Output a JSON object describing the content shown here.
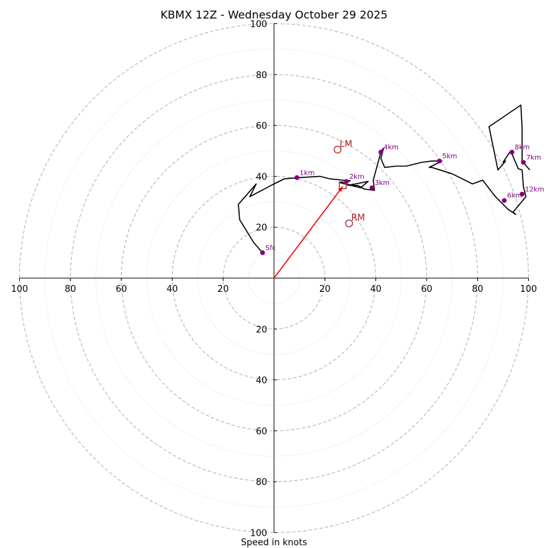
{
  "chart_data": {
    "type": "hodograph",
    "title": "KBMX 12Z - Wednesday October 29 2025",
    "xlabel": "Speed in knots",
    "units": "knots",
    "xlim": [
      -100,
      100
    ],
    "ylim": [
      -100,
      100
    ],
    "ring_major": [
      20,
      40,
      60,
      80,
      100
    ],
    "ring_minor": [
      10,
      30,
      50,
      70,
      90
    ],
    "x_tick_values": [
      -100,
      -80,
      -60,
      -40,
      -20,
      20,
      40,
      60,
      80,
      100
    ],
    "x_tick_labels": [
      "100",
      "80",
      "60",
      "40",
      "20",
      "20",
      "40",
      "60",
      "80",
      "100"
    ],
    "y_tick_values": [
      100,
      80,
      60,
      40,
      20,
      -20,
      -40,
      -60,
      -80,
      -100
    ],
    "y_tick_labels": [
      "100",
      "80",
      "60",
      "40",
      "20",
      "20",
      "40",
      "60",
      "80",
      "100"
    ],
    "hodograph_trace": [
      [
        -4.5,
        10
      ],
      [
        -8,
        14
      ],
      [
        -13.5,
        23
      ],
      [
        -14,
        29
      ],
      [
        -7,
        37
      ],
      [
        -9.5,
        32
      ],
      [
        -1,
        36.5
      ],
      [
        4,
        39
      ],
      [
        10,
        39.5
      ],
      [
        18,
        40
      ],
      [
        22,
        39
      ],
      [
        27,
        38.5
      ],
      [
        30,
        38.2
      ],
      [
        26,
        37.5
      ],
      [
        30,
        36.5
      ],
      [
        34,
        35.5
      ],
      [
        37,
        38
      ],
      [
        32,
        37
      ],
      [
        29,
        36.5
      ],
      [
        33,
        36.4
      ],
      [
        35.5,
        35
      ],
      [
        39.5,
        34.5
      ],
      [
        39,
        38.5
      ],
      [
        42,
        49.5
      ],
      [
        43,
        51
      ],
      [
        42,
        47
      ],
      [
        43.5,
        43.5
      ],
      [
        48,
        44
      ],
      [
        52,
        44
      ],
      [
        58,
        45.5
      ],
      [
        62,
        46
      ],
      [
        66,
        46
      ],
      [
        61,
        43.5
      ],
      [
        62,
        43.5
      ],
      [
        70,
        41
      ],
      [
        78,
        37
      ],
      [
        82,
        38.5
      ],
      [
        87,
        32
      ],
      [
        92,
        27
      ],
      [
        95,
        25
      ],
      [
        94,
        26
      ],
      [
        99,
        32
      ],
      [
        98,
        36
      ],
      [
        97.5,
        42.5
      ],
      [
        96,
        43
      ],
      [
        93,
        50
      ],
      [
        90,
        45.5
      ],
      [
        91,
        46
      ],
      [
        88,
        42.5
      ],
      [
        84.5,
        59.5
      ],
      [
        97,
        68
      ],
      [
        97.5,
        59
      ],
      [
        97.5,
        46
      ],
      [
        100.5,
        42.5
      ]
    ],
    "height_markers": [
      {
        "label": "Sfc",
        "u": -4.5,
        "v": 10
      },
      {
        "label": "1km",
        "u": 9,
        "v": 39.5
      },
      {
        "label": "2km",
        "u": 28.5,
        "v": 38
      },
      {
        "label": "3km",
        "u": 38.5,
        "v": 35.5
      },
      {
        "label": "4km",
        "u": 42,
        "v": 49.5
      },
      {
        "label": "5km",
        "u": 65,
        "v": 46
      },
      {
        "label": "6km",
        "u": 90.5,
        "v": 30.5
      },
      {
        "label": "7km",
        "u": 98,
        "v": 45.5
      },
      {
        "label": "8km",
        "u": 93.5,
        "v": 49.5
      },
      {
        "label": "12km",
        "u": 97.5,
        "v": 33
      }
    ],
    "storm_motion": [
      {
        "label": "LM",
        "u": 25,
        "v": 50.5
      },
      {
        "label": "RM",
        "u": 29.5,
        "v": 21.5
      }
    ],
    "mean_wind": {
      "u": 27,
      "v": 36.5
    },
    "shear_vector": {
      "from": [
        0,
        0
      ],
      "to": [
        27,
        36
      ]
    },
    "colors": {
      "trace": "#000000",
      "marker": "#800080",
      "storm_motion": "#b22222",
      "shear": "#ff0000",
      "grid_major": "#bbbbbb",
      "grid_minor": "#cccccc"
    }
  }
}
